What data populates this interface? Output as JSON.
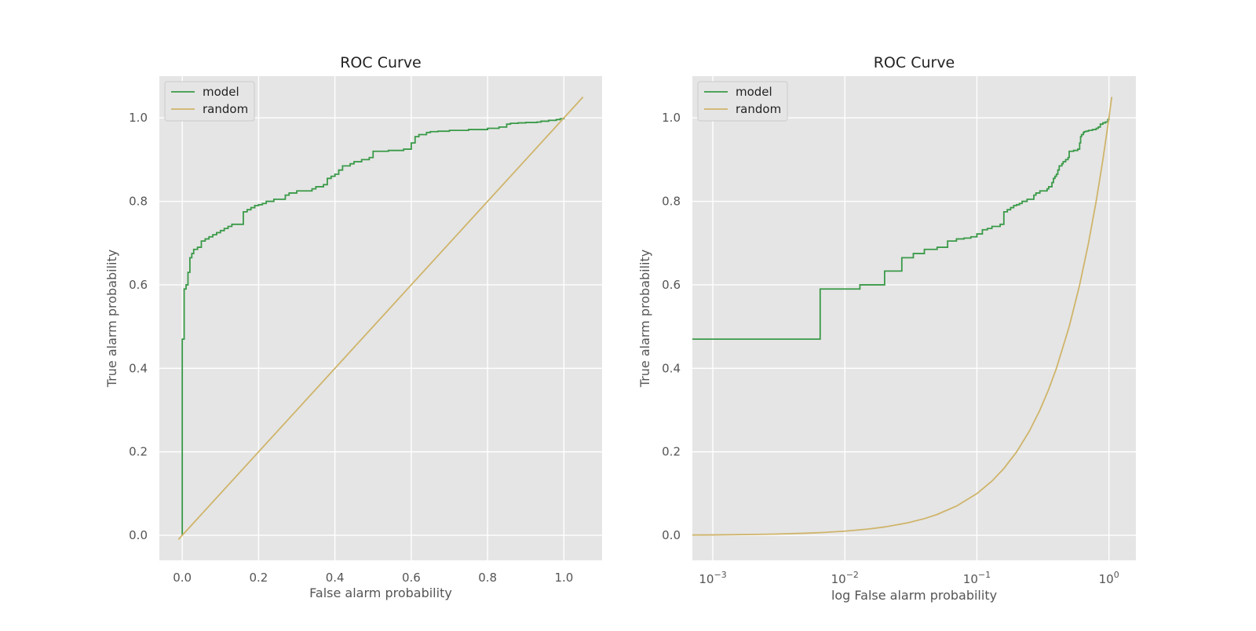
{
  "chart_data": [
    {
      "type": "line",
      "title": "ROC Curve",
      "xlabel": "False alarm probability",
      "ylabel": "True alarm probability",
      "xscale": "linear",
      "xlim": [
        -0.06,
        1.1
      ],
      "ylim": [
        -0.06,
        1.1
      ],
      "xticks": [
        0.0,
        0.2,
        0.4,
        0.6,
        0.8,
        1.0
      ],
      "xtick_labels": [
        "0.0",
        "0.2",
        "0.4",
        "0.6",
        "0.8",
        "1.0"
      ],
      "yticks": [
        0.0,
        0.2,
        0.4,
        0.6,
        0.8,
        1.0
      ],
      "ytick_labels": [
        "0.0",
        "0.2",
        "0.4",
        "0.6",
        "0.8",
        "1.0"
      ],
      "grid": true,
      "legend": "upper left",
      "series": [
        {
          "name": "model",
          "color": "#3a9a48",
          "step": true,
          "x": [
            0.0,
            0.0,
            0.0,
            0.005,
            0.01,
            0.015,
            0.02,
            0.025,
            0.03,
            0.04,
            0.05,
            0.06,
            0.07,
            0.08,
            0.09,
            0.1,
            0.11,
            0.12,
            0.13,
            0.15,
            0.16,
            0.17,
            0.18,
            0.19,
            0.2,
            0.21,
            0.22,
            0.24,
            0.27,
            0.28,
            0.3,
            0.31,
            0.34,
            0.35,
            0.37,
            0.38,
            0.39,
            0.4,
            0.41,
            0.42,
            0.44,
            0.45,
            0.47,
            0.49,
            0.5,
            0.53,
            0.54,
            0.58,
            0.6,
            0.61,
            0.62,
            0.64,
            0.65,
            0.67,
            0.69,
            0.7,
            0.75,
            0.8,
            0.83,
            0.85,
            0.86,
            0.88,
            0.9,
            0.93,
            0.94,
            0.96,
            0.98,
            0.99,
            1.0
          ],
          "y": [
            0.0,
            0.47,
            0.47,
            0.59,
            0.6,
            0.63,
            0.665,
            0.675,
            0.685,
            0.69,
            0.705,
            0.71,
            0.715,
            0.72,
            0.725,
            0.73,
            0.735,
            0.74,
            0.745,
            0.745,
            0.775,
            0.78,
            0.785,
            0.79,
            0.792,
            0.795,
            0.8,
            0.805,
            0.815,
            0.82,
            0.825,
            0.825,
            0.83,
            0.835,
            0.84,
            0.855,
            0.86,
            0.865,
            0.875,
            0.885,
            0.89,
            0.895,
            0.9,
            0.905,
            0.92,
            0.92,
            0.922,
            0.925,
            0.94,
            0.955,
            0.96,
            0.965,
            0.967,
            0.968,
            0.968,
            0.97,
            0.972,
            0.975,
            0.978,
            0.985,
            0.987,
            0.988,
            0.989,
            0.99,
            0.992,
            0.994,
            0.996,
            0.998,
            1.0
          ]
        },
        {
          "name": "random",
          "color": "#cfb46a",
          "step": false,
          "x": [
            -0.01,
            1.05
          ],
          "y": [
            -0.01,
            1.05
          ]
        }
      ]
    },
    {
      "type": "line",
      "title": "ROC Curve",
      "xlabel": "log False alarm probability",
      "ylabel": "True alarm probability",
      "xscale": "log",
      "xlim": [
        0.0007,
        1.6
      ],
      "ylim": [
        -0.06,
        1.1
      ],
      "xticks": [
        0.001,
        0.01,
        0.1,
        1
      ],
      "xtick_labels": [
        {
          "base": "10",
          "exp": "−3"
        },
        {
          "base": "10",
          "exp": "−2"
        },
        {
          "base": "10",
          "exp": "−1"
        },
        {
          "base": "10",
          "exp": "0"
        }
      ],
      "yticks": [
        0.0,
        0.2,
        0.4,
        0.6,
        0.8,
        1.0
      ],
      "ytick_labels": [
        "0.0",
        "0.2",
        "0.4",
        "0.6",
        "0.8",
        "1.0"
      ],
      "grid": true,
      "legend": "upper left",
      "series": [
        {
          "name": "model",
          "color": "#3a9a48",
          "step": true,
          "x": [
            0.0007,
            0.0065,
            0.0065,
            0.013,
            0.02,
            0.027,
            0.033,
            0.04,
            0.05,
            0.06,
            0.07,
            0.08,
            0.09,
            0.1,
            0.11,
            0.12,
            0.13,
            0.15,
            0.16,
            0.17,
            0.18,
            0.19,
            0.2,
            0.21,
            0.22,
            0.24,
            0.27,
            0.28,
            0.3,
            0.31,
            0.34,
            0.35,
            0.37,
            0.38,
            0.39,
            0.4,
            0.41,
            0.42,
            0.44,
            0.45,
            0.47,
            0.49,
            0.5,
            0.53,
            0.54,
            0.58,
            0.6,
            0.61,
            0.62,
            0.64,
            0.65,
            0.67,
            0.7,
            0.75,
            0.8,
            0.83,
            0.86,
            0.9,
            0.94,
            0.98,
            1.0
          ],
          "y": [
            0.47,
            0.47,
            0.59,
            0.6,
            0.633,
            0.665,
            0.675,
            0.685,
            0.69,
            0.705,
            0.71,
            0.712,
            0.715,
            0.722,
            0.732,
            0.735,
            0.74,
            0.745,
            0.775,
            0.78,
            0.785,
            0.79,
            0.792,
            0.795,
            0.8,
            0.805,
            0.815,
            0.82,
            0.825,
            0.825,
            0.83,
            0.835,
            0.845,
            0.855,
            0.86,
            0.865,
            0.875,
            0.885,
            0.89,
            0.895,
            0.9,
            0.905,
            0.92,
            0.92,
            0.922,
            0.925,
            0.94,
            0.955,
            0.96,
            0.965,
            0.967,
            0.968,
            0.97,
            0.972,
            0.975,
            0.978,
            0.985,
            0.988,
            0.99,
            0.996,
            1.0
          ]
        },
        {
          "name": "random",
          "color": "#cfb46a",
          "step": false,
          "x": [
            0.0007,
            0.001,
            0.002,
            0.003,
            0.005,
            0.007,
            0.01,
            0.015,
            0.02,
            0.03,
            0.04,
            0.05,
            0.07,
            0.1,
            0.13,
            0.16,
            0.2,
            0.25,
            0.3,
            0.35,
            0.4,
            0.5,
            0.6,
            0.7,
            0.8,
            0.9,
            1.0,
            1.05
          ],
          "y": [
            0.0007,
            0.001,
            0.002,
            0.003,
            0.005,
            0.007,
            0.01,
            0.015,
            0.02,
            0.03,
            0.04,
            0.05,
            0.07,
            0.1,
            0.13,
            0.16,
            0.2,
            0.25,
            0.3,
            0.35,
            0.4,
            0.5,
            0.6,
            0.7,
            0.8,
            0.9,
            1.0,
            1.05
          ]
        }
      ]
    }
  ]
}
